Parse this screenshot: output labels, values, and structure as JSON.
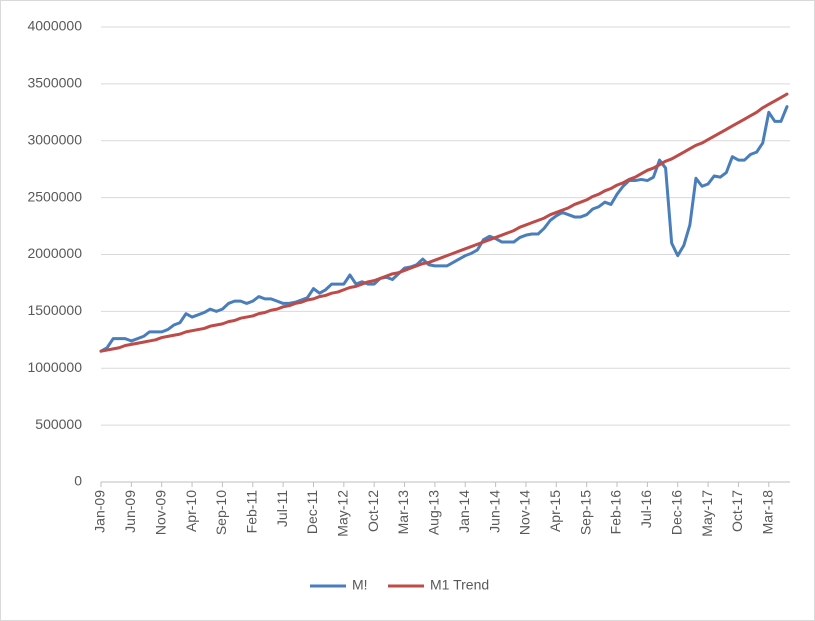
{
  "chart_data": {
    "type": "line",
    "categories": [
      "Jan-09",
      null,
      null,
      null,
      null,
      "Jun-09",
      null,
      null,
      null,
      null,
      "Nov-09",
      null,
      null,
      null,
      null,
      "Apr-10",
      null,
      null,
      null,
      null,
      "Sep-10",
      null,
      null,
      null,
      null,
      "Feb-11",
      null,
      null,
      null,
      null,
      "Jul-11",
      null,
      null,
      null,
      null,
      "Dec-11",
      null,
      null,
      null,
      null,
      "May-12",
      null,
      null,
      null,
      null,
      "Oct-12",
      null,
      null,
      null,
      null,
      "Mar-13",
      null,
      null,
      null,
      null,
      "Aug-13",
      null,
      null,
      null,
      null,
      "Jan-14",
      null,
      null,
      null,
      null,
      "Jun-14",
      null,
      null,
      null,
      null,
      "Nov-14",
      null,
      null,
      null,
      null,
      "Apr-15",
      null,
      null,
      null,
      null,
      "Sep-15",
      null,
      null,
      null,
      null,
      "Feb-16",
      null,
      null,
      null,
      null,
      "Jul-16",
      null,
      null,
      null,
      null,
      "Dec-16",
      null,
      null,
      null,
      null,
      "May-17",
      null,
      null,
      null,
      null,
      "Oct-17",
      null,
      null,
      null,
      null,
      "Mar-18",
      null,
      null,
      null
    ],
    "series": [
      {
        "name": "M!",
        "color": "#4a7ebb",
        "values": [
          1150000,
          1180000,
          1260000,
          1260000,
          1260000,
          1240000,
          1260000,
          1280000,
          1320000,
          1320000,
          1320000,
          1340000,
          1380000,
          1400000,
          1480000,
          1450000,
          1470000,
          1490000,
          1520000,
          1500000,
          1520000,
          1570000,
          1590000,
          1590000,
          1570000,
          1590000,
          1630000,
          1610000,
          1610000,
          1590000,
          1570000,
          1570000,
          1580000,
          1600000,
          1620000,
          1700000,
          1660000,
          1690000,
          1740000,
          1740000,
          1740000,
          1820000,
          1740000,
          1760000,
          1740000,
          1740000,
          1790000,
          1800000,
          1780000,
          1830000,
          1880000,
          1890000,
          1910000,
          1960000,
          1910000,
          1900000,
          1900000,
          1900000,
          1930000,
          1960000,
          1990000,
          2010000,
          2040000,
          2130000,
          2160000,
          2140000,
          2110000,
          2110000,
          2110000,
          2150000,
          2170000,
          2180000,
          2180000,
          2230000,
          2300000,
          2340000,
          2370000,
          2350000,
          2330000,
          2330000,
          2350000,
          2400000,
          2420000,
          2460000,
          2440000,
          2530000,
          2600000,
          2650000,
          2650000,
          2660000,
          2650000,
          2680000,
          2830000,
          2760000,
          2100000,
          1990000,
          2080000,
          2260000,
          2670000,
          2600000,
          2620000,
          2690000,
          2680000,
          2720000,
          2860000,
          2830000,
          2830000,
          2880000,
          2900000,
          2980000,
          3250000,
          3170000,
          3170000,
          3300000
        ]
      },
      {
        "name": "M1 Trend",
        "color": "#be4b48",
        "values": [
          1150000,
          1160000,
          1170000,
          1180000,
          1200000,
          1210000,
          1220000,
          1230000,
          1240000,
          1250000,
          1270000,
          1280000,
          1290000,
          1300000,
          1320000,
          1330000,
          1340000,
          1350000,
          1370000,
          1380000,
          1390000,
          1410000,
          1420000,
          1440000,
          1450000,
          1460000,
          1480000,
          1490000,
          1510000,
          1520000,
          1540000,
          1550000,
          1570000,
          1580000,
          1600000,
          1610000,
          1630000,
          1640000,
          1660000,
          1670000,
          1690000,
          1710000,
          1720000,
          1740000,
          1760000,
          1770000,
          1790000,
          1810000,
          1830000,
          1840000,
          1860000,
          1880000,
          1900000,
          1920000,
          1930000,
          1950000,
          1970000,
          1990000,
          2010000,
          2030000,
          2050000,
          2070000,
          2090000,
          2110000,
          2130000,
          2150000,
          2170000,
          2190000,
          2210000,
          2240000,
          2260000,
          2280000,
          2300000,
          2320000,
          2350000,
          2370000,
          2390000,
          2410000,
          2440000,
          2460000,
          2480000,
          2510000,
          2530000,
          2560000,
          2580000,
          2610000,
          2630000,
          2660000,
          2680000,
          2710000,
          2740000,
          2760000,
          2790000,
          2820000,
          2840000,
          2870000,
          2900000,
          2930000,
          2960000,
          2980000,
          3010000,
          3040000,
          3070000,
          3100000,
          3130000,
          3160000,
          3190000,
          3220000,
          3250000,
          3290000,
          3320000,
          3350000,
          3380000,
          3410000
        ]
      }
    ],
    "ylim": [
      0,
      4000000
    ],
    "yticks": [
      0,
      500000,
      1000000,
      1500000,
      2000000,
      2500000,
      3000000,
      3500000,
      4000000
    ],
    "grid": true,
    "legend": "bottom"
  }
}
